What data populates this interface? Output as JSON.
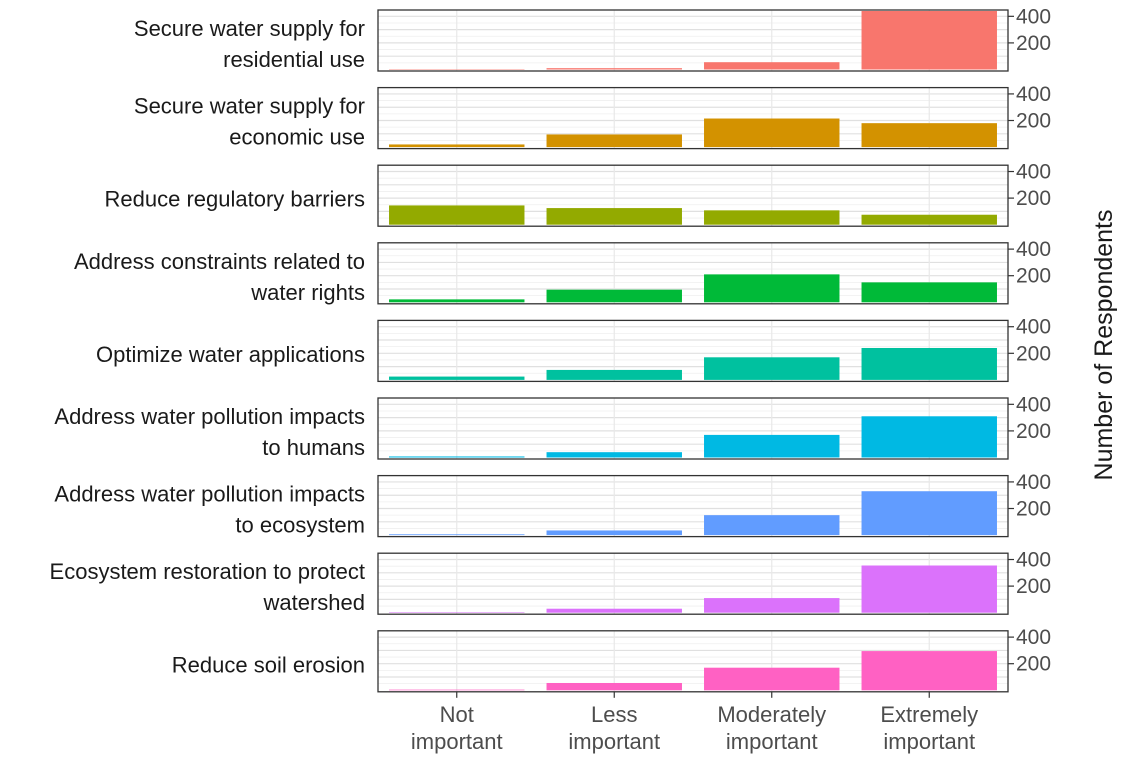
{
  "chart_data": {
    "type": "bar",
    "layout": "faceted-rows",
    "categories": [
      "Not important",
      "Less important",
      "Moderately important",
      "Extremely important"
    ],
    "category_lines": [
      [
        "Not",
        "important"
      ],
      [
        "Less",
        "important"
      ],
      [
        "Moderately",
        "important"
      ],
      [
        "Extremely",
        "important"
      ]
    ],
    "ylabel": "Number of Respondents",
    "ylim": [
      0,
      440
    ],
    "yticks": [
      200,
      400
    ],
    "grid": true,
    "legend": "none",
    "series": [
      {
        "name": "Secure water supply for residential use",
        "label_lines": [
          "Secure water supply for",
          "residential use"
        ],
        "color": "#F8766D",
        "values": [
          3,
          10,
          55,
          440
        ]
      },
      {
        "name": "Secure water supply for economic use",
        "label_lines": [
          "Secure water supply for",
          "economic use"
        ],
        "color": "#D39200",
        "values": [
          20,
          95,
          215,
          180
        ]
      },
      {
        "name": "Reduce regulatory barriers",
        "label_lines": [
          "Reduce regulatory barriers"
        ],
        "color": "#93AA00",
        "values": [
          145,
          125,
          108,
          75
        ]
      },
      {
        "name": "Address constraints related to water rights",
        "label_lines": [
          "Address constraints related to",
          "water rights"
        ],
        "color": "#00BA38",
        "values": [
          22,
          95,
          210,
          150
        ]
      },
      {
        "name": "Optimize water applications",
        "label_lines": [
          "Optimize water applications"
        ],
        "color": "#00C19F",
        "values": [
          25,
          75,
          170,
          240
        ]
      },
      {
        "name": "Address water pollution impacts to humans",
        "label_lines": [
          "Address water pollution impacts",
          "to humans"
        ],
        "color": "#00B9E3",
        "values": [
          8,
          40,
          170,
          310
        ]
      },
      {
        "name": "Address water pollution impacts to ecosystem",
        "label_lines": [
          "Address water pollution impacts",
          "to ecosystem"
        ],
        "color": "#619CFF",
        "values": [
          6,
          35,
          150,
          330
        ]
      },
      {
        "name": "Ecosystem restoration to protect watershed",
        "label_lines": [
          "Ecosystem restoration to protect",
          "watershed"
        ],
        "color": "#DB72FB",
        "values": [
          4,
          30,
          110,
          355
        ]
      },
      {
        "name": "Reduce soil erosion",
        "label_lines": [
          "Reduce soil erosion"
        ],
        "color": "#FF61C3",
        "values": [
          5,
          55,
          170,
          295
        ]
      }
    ]
  }
}
